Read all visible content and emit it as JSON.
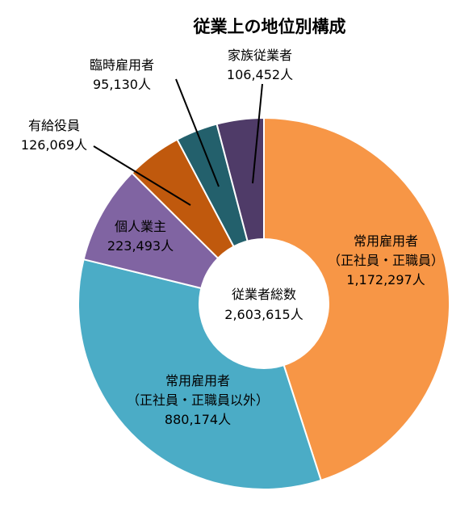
{
  "chart_data": {
    "type": "pie",
    "variant": "donut",
    "title": "従業上の地位別構成",
    "unit": "人",
    "center": {
      "label": "従業者総数",
      "value": "2,603,615人"
    },
    "slices": [
      {
        "name_lines": [
          "常用雇用者",
          "（正社員・正職員）"
        ],
        "value": 1172297,
        "value_text": "1,172,297人",
        "color": "#F79646"
      },
      {
        "name_lines": [
          "常用雇用者",
          "（正社員・正職員以外）"
        ],
        "value": 880174,
        "value_text": "880,174人",
        "color": "#4BACC6"
      },
      {
        "name_lines": [
          "個人業主"
        ],
        "value": 223493,
        "value_text": "223,493人",
        "color": "#8064A2"
      },
      {
        "name_lines": [
          "有給役員"
        ],
        "value": 126069,
        "value_text": "126,069人",
        "color": "#C0590D"
      },
      {
        "name_lines": [
          "臨時雇用者"
        ],
        "value": 95130,
        "value_text": "95,130人",
        "color": "#23606C"
      },
      {
        "name_lines": [
          "家族従業者"
        ],
        "value": 106452,
        "value_text": "106,452人",
        "color": "#4F3B68"
      }
    ]
  }
}
